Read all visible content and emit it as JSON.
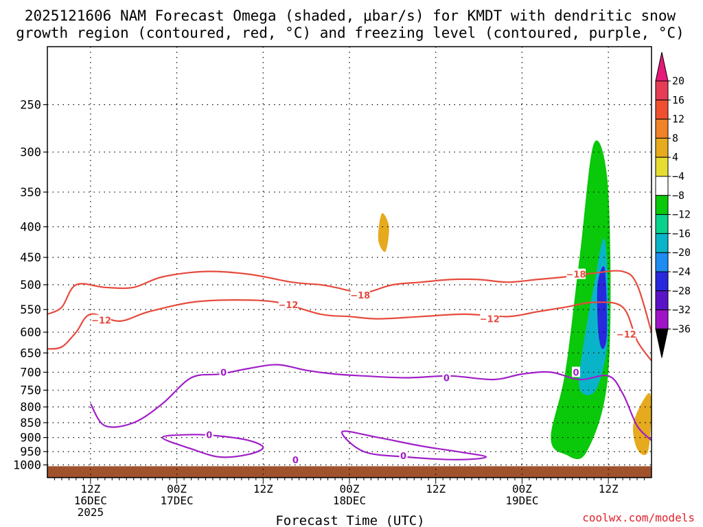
{
  "title": {
    "line1": "2025121606 NAM Forecast Omega (shaded, μbar/s) for KMDT with dendritic snow",
    "line2": "growth region (contoured, red, °C) and freezing level (contoured, purple, °C)"
  },
  "credit": "coolwx.com/models",
  "credit_color": "#e0202a",
  "chart_data": {
    "type": "heatmap",
    "title": "2025121606 NAM Forecast Omega (shaded, μbar/s) for KMDT with dendritic snow growth region (contoured, red, °C) and freezing level (contoured, purple, °C)",
    "xlabel": "Forecast Time (UTC)",
    "ylabel": "Pressure (hPa)",
    "x_range_hours": [
      6,
      90
    ],
    "y_range_hpa": [
      1050,
      200
    ],
    "y_ticks": [
      250,
      300,
      350,
      400,
      450,
      500,
      550,
      600,
      650,
      700,
      750,
      800,
      850,
      900,
      950,
      1000
    ],
    "x_ticks": [
      {
        "hour": 12,
        "line1": "12Z",
        "line2": "16DEC",
        "line3": "2025"
      },
      {
        "hour": 24,
        "line1": "00Z",
        "line2": "17DEC",
        "line3": ""
      },
      {
        "hour": 36,
        "line1": "12Z",
        "line2": "",
        "line3": ""
      },
      {
        "hour": 48,
        "line1": "00Z",
        "line2": "18DEC",
        "line3": ""
      },
      {
        "hour": 60,
        "line1": "12Z",
        "line2": "",
        "line3": ""
      },
      {
        "hour": 72,
        "line1": "00Z",
        "line2": "19DEC",
        "line3": ""
      },
      {
        "hour": 84,
        "line1": "12Z",
        "line2": "",
        "line3": ""
      }
    ],
    "grid": true,
    "colorbar": {
      "unit": "μbar/s",
      "labels": [
        "20",
        "16",
        "12",
        "8",
        "4",
        "−4",
        "−8",
        "−12",
        "−16",
        "−20",
        "−24",
        "−28",
        "−32",
        "−36"
      ],
      "colors": [
        "#e63c55",
        "#f05030",
        "#f08228",
        "#e6aa1e",
        "#e6dc32",
        "#ffffff",
        "#0ac80a",
        "#0ad28c",
        "#0ab4c8",
        "#1e8cf0",
        "#2828dc",
        "#5a14c8",
        "#a014c8",
        "#aaaaaa"
      ],
      "top_arrow_color": "#e6197a",
      "bottom_arrow_color": "#000000"
    },
    "omega_regions": [
      {
        "name": "upper-green-column",
        "value": -6,
        "hours": [
          47.5,
          48.5,
          48.0,
          47.0,
          46.5
        ],
        "press": [
          350,
          400,
          430,
          430,
          360
        ]
      },
      {
        "name": "left-green-strip",
        "value": -6,
        "hours": [
          46.5,
          46.0,
          45.0,
          44.5,
          45.5
        ],
        "press": [
          500,
          620,
          680,
          600,
          520
        ]
      },
      {
        "name": "small-yellow-400",
        "value": 5,
        "hours": [
          52.5,
          53.5,
          53.0,
          52.0
        ],
        "press": [
          380,
          400,
          440,
          420
        ]
      },
      {
        "name": "main-green",
        "value": -6,
        "hours": [
          70,
          75,
          78,
          80,
          84,
          86,
          88,
          87,
          84,
          78,
          72,
          68
        ],
        "press": [
          980,
          950,
          800,
          500,
          230,
          400,
          600,
          850,
          970,
          1000,
          990,
          960
        ]
      },
      {
        "name": "main-teal",
        "value": -12,
        "hours": [
          76,
          78,
          80,
          82,
          84,
          84,
          81,
          78
        ],
        "press": [
          900,
          700,
          450,
          290,
          350,
          700,
          950,
          960
        ]
      },
      {
        "name": "main-blue",
        "value": -18,
        "hours": [
          80,
          82,
          83.5,
          84,
          82.5,
          80.5
        ],
        "press": [
          700,
          500,
          420,
          600,
          740,
          760
        ]
      },
      {
        "name": "core-purple",
        "value": -26,
        "hours": [
          82.5,
          83.5,
          83.8,
          83.2,
          82.6
        ],
        "press": [
          500,
          470,
          600,
          640,
          600
        ]
      },
      {
        "name": "right-yellow-surface",
        "value": 6,
        "hours": [
          87.5,
          89.5,
          90,
          89.5,
          88
        ],
        "press": [
          850,
          760,
          800,
          950,
          940
        ]
      }
    ],
    "contours": [
      {
        "name": "dgz-upper-minus-18",
        "label": "−18",
        "color": "#e64a3c",
        "hours": [
          6,
          8,
          10,
          14,
          18,
          22,
          28,
          34,
          40,
          44,
          46,
          50,
          54,
          58,
          62,
          66,
          70,
          74,
          78,
          82,
          86,
          88,
          90
        ],
        "press": [
          560,
          545,
          500,
          505,
          505,
          485,
          475,
          480,
          495,
          500,
          505,
          515,
          500,
          495,
          490,
          490,
          495,
          490,
          485,
          478,
          475,
          500,
          600
        ]
      },
      {
        "name": "dgz-lower-minus-12",
        "label": "−12",
        "color": "#e64a3c",
        "hours": [
          6,
          8,
          10,
          12,
          16,
          20,
          26,
          32,
          38,
          44,
          48,
          52,
          58,
          64,
          70,
          74,
          78,
          82,
          86,
          88,
          90
        ],
        "press": [
          640,
          635,
          600,
          560,
          575,
          555,
          535,
          530,
          535,
          560,
          565,
          570,
          565,
          560,
          565,
          555,
          545,
          535,
          545,
          620,
          670
        ]
      },
      {
        "name": "freezing-level-upper",
        "label": "0",
        "color": "#a01ec8",
        "hours": [
          12,
          14,
          18,
          22,
          26,
          30,
          34,
          38,
          42,
          46,
          50,
          56,
          62,
          68,
          72,
          76,
          80,
          84,
          86,
          88,
          90
        ],
        "press": [
          790,
          860,
          850,
          790,
          715,
          705,
          690,
          680,
          695,
          705,
          710,
          715,
          710,
          720,
          705,
          700,
          720,
          710,
          760,
          860,
          910
        ]
      },
      {
        "name": "freezing-level-lower",
        "label": "0",
        "color": "#a01ec8",
        "hours": [
          22,
          26,
          30,
          34,
          36,
          34,
          30,
          26
        ],
        "press": [
          900,
          890,
          895,
          910,
          935,
          960,
          970,
          940
        ]
      },
      {
        "name": "freezing-level-low-east",
        "label": "0",
        "color": "#a01ec8",
        "hours": [
          47,
          52,
          58,
          63,
          67,
          63,
          56,
          50
        ],
        "press": [
          880,
          900,
          930,
          950,
          970,
          980,
          970,
          950
        ]
      }
    ],
    "contour_labels": [
      {
        "text": "−18",
        "hour": 49.5,
        "press": 520,
        "color": "#e64a3c"
      },
      {
        "text": "−18",
        "hour": 79.5,
        "press": 480,
        "color": "#e64a3c"
      },
      {
        "text": "−12",
        "hour": 13.5,
        "press": 573,
        "color": "#e64a3c"
      },
      {
        "text": "−12",
        "hour": 39.5,
        "press": 540,
        "color": "#e64a3c"
      },
      {
        "text": "−12",
        "hour": 67.5,
        "press": 570,
        "color": "#e64a3c"
      },
      {
        "text": "−12",
        "hour": 86.5,
        "press": 605,
        "color": "#e64a3c"
      },
      {
        "text": "0",
        "hour": 30.5,
        "press": 700,
        "color": "#a01ec8"
      },
      {
        "text": "0",
        "hour": 61.5,
        "press": 715,
        "color": "#a01ec8"
      },
      {
        "text": "0",
        "hour": 79.5,
        "press": 700,
        "color": "#a01ec8"
      },
      {
        "text": "0",
        "hour": 28.5,
        "press": 890,
        "color": "#a01ec8"
      },
      {
        "text": "0",
        "hour": 40.5,
        "press": 980,
        "color": "#a01ec8"
      },
      {
        "text": "0",
        "hour": 55.5,
        "press": 965,
        "color": "#a01ec8"
      }
    ],
    "terrain": {
      "pressure_hpa": 1005,
      "color": "#a0522d"
    }
  }
}
